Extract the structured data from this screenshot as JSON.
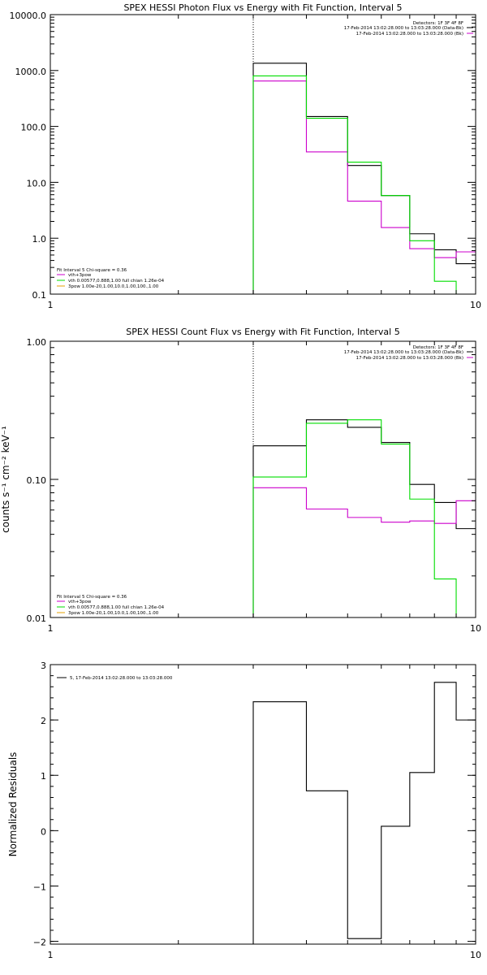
{
  "colors": {
    "data": "#000000",
    "background": "#00cc00",
    "vth": "#cc00cc",
    "spectrum_fit": "#00dd00",
    "axis": "#000000"
  },
  "chart_data": [
    {
      "type": "line",
      "title": "SPEX HESSI Photon Flux vs Energy with Fit Function, Interval 5",
      "xlabel": "",
      "ylabel": "",
      "xscale": "log",
      "yscale": "log",
      "xlim": [
        1,
        10
      ],
      "ylim": [
        0.1,
        10000
      ],
      "xticks": [
        "1",
        "10"
      ],
      "yticks": [
        "0.1",
        "1.0",
        "10.0",
        "100.0",
        "1000.0",
        "10000.0"
      ],
      "marker_x": 3,
      "top_legend": {
        "lines": [
          "Detectors: 1F 3F 4F 8F",
          "17-Feb-2014 13:02:28.000 to 13:03:28.000 (Data-Bk)",
          "17-Feb-2014 13:02:28.000 to 13:03:28.000 (Bk)"
        ]
      },
      "bottom_legend": {
        "lines": [
          "Fit Interval  5   Chi-square = 0.36",
          "vth+3pow",
          "vth 0.00577,0.888,1.00  full chian 1.26e-04",
          "3pow 1.00e-20,1.00,10.0,1.00,100.,1.00"
        ]
      },
      "series": [
        {
          "color": "#000000",
          "edges": [
            3,
            4,
            5,
            6,
            7,
            8,
            9,
            10
          ],
          "values": [
            1350,
            150,
            20,
            5.8,
            1.2,
            0.62,
            0.35
          ]
        },
        {
          "color": "#cc00cc",
          "edges": [
            3,
            4,
            5,
            6,
            7,
            8,
            9,
            10
          ],
          "values": [
            650,
            35,
            4.6,
            1.55,
            0.65,
            0.45,
            0.57
          ]
        },
        {
          "color": "#00dd00",
          "edges": [
            3,
            4,
            5,
            6,
            7,
            8,
            9,
            10
          ],
          "values": [
            800,
            140,
            23,
            5.8,
            0.9,
            0.17,
            0.06
          ]
        }
      ]
    },
    {
      "type": "line",
      "title": "SPEX HESSI Count Flux vs Energy with Fit Function, Interval 5",
      "xlabel": "",
      "ylabel": "counts s⁻¹ cm⁻² keV⁻¹",
      "xscale": "log",
      "yscale": "log",
      "xlim": [
        1,
        10
      ],
      "ylim": [
        0.01,
        1.0
      ],
      "xticks": [
        "1",
        "10"
      ],
      "yticks": [
        "0.01",
        "0.10",
        "1.00"
      ],
      "marker_x": 3,
      "top_legend": {
        "lines": [
          "Detectors: 1F 3F 4F 8F",
          "17-Feb-2014 13:02:28.000 to 13:03:28.000 (Data-Bk)",
          "17-Feb-2014 13:02:28.000 to 13:03:28.000 (Bk)"
        ]
      },
      "bottom_legend": {
        "lines": [
          "Fit Interval  5   Chi-square = 0.36",
          "vth+3pow",
          "vth 0.00577,0.888,1.00  full chian 1.26e-04",
          "3pow 1.00e-20,1.00,10.0,1.00,100.,1.00"
        ]
      },
      "series": [
        {
          "color": "#000000",
          "edges": [
            3,
            4,
            5,
            6,
            7,
            8,
            9,
            10
          ],
          "values": [
            0.175,
            0.27,
            0.238,
            0.185,
            0.092,
            0.068,
            0.044
          ]
        },
        {
          "color": "#cc00cc",
          "edges": [
            3,
            4,
            5,
            6,
            7,
            8,
            9,
            10
          ],
          "values": [
            0.087,
            0.061,
            0.053,
            0.049,
            0.05,
            0.048,
            0.07
          ]
        },
        {
          "color": "#00dd00",
          "edges": [
            3,
            4,
            5,
            6,
            7,
            8,
            9,
            10
          ],
          "values": [
            0.104,
            0.255,
            0.27,
            0.18,
            0.072,
            0.019,
            0.006
          ]
        }
      ]
    },
    {
      "type": "line",
      "title": "",
      "xlabel": "",
      "ylabel": "Normalized Residuals",
      "xscale": "log",
      "yscale": "linear",
      "xlim": [
        1,
        10
      ],
      "ylim": [
        -2.05,
        3
      ],
      "xticks": [
        "1",
        "10"
      ],
      "yticks": [
        "−2",
        "−1",
        "0",
        "1",
        "2",
        "3"
      ],
      "legend": {
        "lines": [
          "5, 17-Feb-2014 13:02:28.000 to 13:03:28.000"
        ]
      },
      "series": [
        {
          "color": "#000000",
          "edges": [
            3,
            4,
            5,
            6,
            7,
            8,
            9,
            10
          ],
          "values": [
            2.33,
            0.72,
            -1.95,
            0.08,
            1.05,
            2.68,
            2.0
          ]
        }
      ]
    }
  ]
}
